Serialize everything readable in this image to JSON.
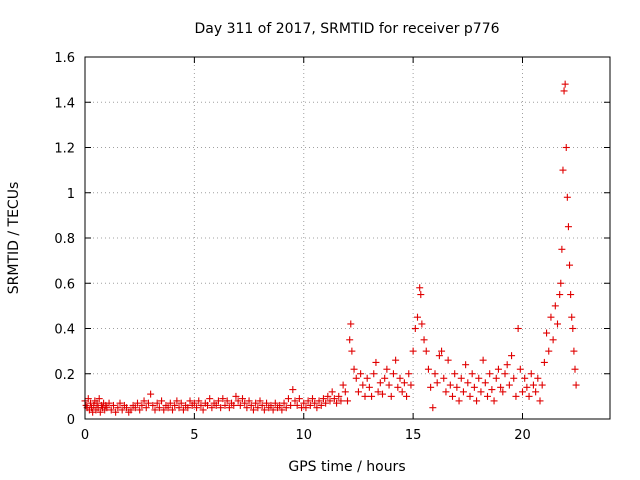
{
  "chart_data": {
    "type": "scatter",
    "title": "Day 311 of 2017, SRMTID for receiver p776",
    "xlabel": "GPS time / hours",
    "ylabel": "SRMTID / TECUs",
    "xlim": [
      0,
      24
    ],
    "ylim": [
      0,
      1.6
    ],
    "grid": true,
    "marker": "plus",
    "color": "#e00000",
    "x_ticks": [
      0,
      5,
      10,
      15,
      20
    ],
    "x_tick_labels": [
      "0",
      "5",
      "10",
      "15",
      "20"
    ],
    "y_ticks": [
      0,
      0.2,
      0.4,
      0.6,
      0.8,
      1.0,
      1.2,
      1.4,
      1.6
    ],
    "y_tick_labels": [
      "0",
      "0.2",
      "0.4",
      "0.6",
      "0.8",
      "1",
      "1.2",
      "1.4",
      "1.6"
    ],
    "series": [
      {
        "name": "SRMTID",
        "points": [
          [
            0.0,
            0.08
          ],
          [
            0.05,
            0.06
          ],
          [
            0.1,
            0.05
          ],
          [
            0.15,
            0.09
          ],
          [
            0.2,
            0.04
          ],
          [
            0.25,
            0.07
          ],
          [
            0.3,
            0.05
          ],
          [
            0.35,
            0.03
          ],
          [
            0.4,
            0.06
          ],
          [
            0.45,
            0.08
          ],
          [
            0.5,
            0.04
          ],
          [
            0.55,
            0.07
          ],
          [
            0.6,
            0.05
          ],
          [
            0.65,
            0.09
          ],
          [
            0.7,
            0.03
          ],
          [
            0.75,
            0.06
          ],
          [
            0.8,
            0.05
          ],
          [
            0.85,
            0.07
          ],
          [
            0.9,
            0.04
          ],
          [
            0.95,
            0.06
          ],
          [
            1.0,
            0.05
          ],
          [
            1.1,
            0.07
          ],
          [
            1.2,
            0.04
          ],
          [
            1.3,
            0.06
          ],
          [
            1.4,
            0.03
          ],
          [
            1.5,
            0.05
          ],
          [
            1.6,
            0.07
          ],
          [
            1.7,
            0.04
          ],
          [
            1.8,
            0.06
          ],
          [
            1.9,
            0.05
          ],
          [
            2.0,
            0.03
          ],
          [
            2.1,
            0.04
          ],
          [
            2.2,
            0.06
          ],
          [
            2.3,
            0.05
          ],
          [
            2.4,
            0.07
          ],
          [
            2.5,
            0.04
          ],
          [
            2.6,
            0.06
          ],
          [
            2.7,
            0.08
          ],
          [
            2.8,
            0.05
          ],
          [
            2.9,
            0.07
          ],
          [
            3.0,
            0.11
          ],
          [
            3.1,
            0.06
          ],
          [
            3.2,
            0.04
          ],
          [
            3.3,
            0.07
          ],
          [
            3.4,
            0.05
          ],
          [
            3.5,
            0.08
          ],
          [
            3.6,
            0.04
          ],
          [
            3.7,
            0.06
          ],
          [
            3.8,
            0.05
          ],
          [
            3.9,
            0.07
          ],
          [
            4.0,
            0.04
          ],
          [
            4.1,
            0.06
          ],
          [
            4.2,
            0.08
          ],
          [
            4.3,
            0.05
          ],
          [
            4.4,
            0.07
          ],
          [
            4.5,
            0.04
          ],
          [
            4.6,
            0.06
          ],
          [
            4.7,
            0.05
          ],
          [
            4.8,
            0.08
          ],
          [
            4.9,
            0.06
          ],
          [
            5.0,
            0.07
          ],
          [
            5.1,
            0.05
          ],
          [
            5.2,
            0.08
          ],
          [
            5.3,
            0.06
          ],
          [
            5.4,
            0.04
          ],
          [
            5.5,
            0.07
          ],
          [
            5.6,
            0.06
          ],
          [
            5.7,
            0.09
          ],
          [
            5.8,
            0.05
          ],
          [
            5.9,
            0.07
          ],
          [
            6.0,
            0.06
          ],
          [
            6.1,
            0.08
          ],
          [
            6.2,
            0.05
          ],
          [
            6.3,
            0.09
          ],
          [
            6.4,
            0.06
          ],
          [
            6.5,
            0.08
          ],
          [
            6.6,
            0.05
          ],
          [
            6.7,
            0.07
          ],
          [
            6.8,
            0.06
          ],
          [
            6.9,
            0.1
          ],
          [
            7.0,
            0.08
          ],
          [
            7.1,
            0.06
          ],
          [
            7.2,
            0.09
          ],
          [
            7.3,
            0.07
          ],
          [
            7.4,
            0.05
          ],
          [
            7.5,
            0.08
          ],
          [
            7.6,
            0.06
          ],
          [
            7.7,
            0.04
          ],
          [
            7.8,
            0.07
          ],
          [
            7.9,
            0.05
          ],
          [
            8.0,
            0.08
          ],
          [
            8.1,
            0.06
          ],
          [
            8.2,
            0.04
          ],
          [
            8.3,
            0.07
          ],
          [
            8.4,
            0.05
          ],
          [
            8.5,
            0.06
          ],
          [
            8.6,
            0.04
          ],
          [
            8.7,
            0.07
          ],
          [
            8.8,
            0.05
          ],
          [
            8.9,
            0.06
          ],
          [
            9.0,
            0.04
          ],
          [
            9.1,
            0.07
          ],
          [
            9.2,
            0.05
          ],
          [
            9.3,
            0.09
          ],
          [
            9.4,
            0.06
          ],
          [
            9.5,
            0.13
          ],
          [
            9.6,
            0.08
          ],
          [
            9.7,
            0.06
          ],
          [
            9.8,
            0.09
          ],
          [
            9.9,
            0.05
          ],
          [
            10.0,
            0.07
          ],
          [
            10.1,
            0.05
          ],
          [
            10.2,
            0.08
          ],
          [
            10.3,
            0.06
          ],
          [
            10.4,
            0.09
          ],
          [
            10.5,
            0.07
          ],
          [
            10.6,
            0.05
          ],
          [
            10.7,
            0.08
          ],
          [
            10.8,
            0.06
          ],
          [
            10.9,
            0.09
          ],
          [
            11.0,
            0.07
          ],
          [
            11.1,
            0.1
          ],
          [
            11.2,
            0.08
          ],
          [
            11.3,
            0.12
          ],
          [
            11.4,
            0.09
          ],
          [
            11.5,
            0.07
          ],
          [
            11.6,
            0.1
          ],
          [
            11.7,
            0.08
          ],
          [
            11.8,
            0.15
          ],
          [
            11.9,
            0.12
          ],
          [
            12.0,
            0.08
          ],
          [
            12.1,
            0.35
          ],
          [
            12.15,
            0.42
          ],
          [
            12.2,
            0.3
          ],
          [
            12.3,
            0.22
          ],
          [
            12.4,
            0.18
          ],
          [
            12.5,
            0.12
          ],
          [
            12.6,
            0.2
          ],
          [
            12.7,
            0.15
          ],
          [
            12.8,
            0.1
          ],
          [
            12.9,
            0.18
          ],
          [
            13.0,
            0.14
          ],
          [
            13.1,
            0.1
          ],
          [
            13.2,
            0.2
          ],
          [
            13.3,
            0.25
          ],
          [
            13.4,
            0.12
          ],
          [
            13.5,
            0.16
          ],
          [
            13.6,
            0.11
          ],
          [
            13.7,
            0.18
          ],
          [
            13.8,
            0.22
          ],
          [
            13.9,
            0.15
          ],
          [
            14.0,
            0.1
          ],
          [
            14.1,
            0.2
          ],
          [
            14.2,
            0.26
          ],
          [
            14.3,
            0.14
          ],
          [
            14.4,
            0.18
          ],
          [
            14.5,
            0.12
          ],
          [
            14.6,
            0.16
          ],
          [
            14.7,
            0.1
          ],
          [
            14.8,
            0.2
          ],
          [
            14.9,
            0.15
          ],
          [
            15.0,
            0.3
          ],
          [
            15.1,
            0.4
          ],
          [
            15.2,
            0.45
          ],
          [
            15.3,
            0.58
          ],
          [
            15.35,
            0.55
          ],
          [
            15.4,
            0.42
          ],
          [
            15.5,
            0.35
          ],
          [
            15.6,
            0.3
          ],
          [
            15.7,
            0.22
          ],
          [
            15.8,
            0.14
          ],
          [
            15.9,
            0.05
          ],
          [
            16.0,
            0.2
          ],
          [
            16.1,
            0.16
          ],
          [
            16.2,
            0.28
          ],
          [
            16.3,
            0.3
          ],
          [
            16.4,
            0.18
          ],
          [
            16.5,
            0.12
          ],
          [
            16.6,
            0.26
          ],
          [
            16.7,
            0.15
          ],
          [
            16.8,
            0.1
          ],
          [
            16.9,
            0.2
          ],
          [
            17.0,
            0.14
          ],
          [
            17.1,
            0.08
          ],
          [
            17.2,
            0.18
          ],
          [
            17.3,
            0.12
          ],
          [
            17.4,
            0.24
          ],
          [
            17.5,
            0.16
          ],
          [
            17.6,
            0.1
          ],
          [
            17.7,
            0.2
          ],
          [
            17.8,
            0.14
          ],
          [
            17.9,
            0.08
          ],
          [
            18.0,
            0.18
          ],
          [
            18.1,
            0.12
          ],
          [
            18.2,
            0.26
          ],
          [
            18.3,
            0.16
          ],
          [
            18.4,
            0.1
          ],
          [
            18.5,
            0.2
          ],
          [
            18.6,
            0.13
          ],
          [
            18.7,
            0.08
          ],
          [
            18.8,
            0.18
          ],
          [
            18.9,
            0.22
          ],
          [
            19.0,
            0.14
          ],
          [
            19.1,
            0.12
          ],
          [
            19.2,
            0.2
          ],
          [
            19.3,
            0.24
          ],
          [
            19.4,
            0.15
          ],
          [
            19.5,
            0.28
          ],
          [
            19.6,
            0.18
          ],
          [
            19.7,
            0.1
          ],
          [
            19.8,
            0.4
          ],
          [
            19.9,
            0.22
          ],
          [
            20.0,
            0.12
          ],
          [
            20.1,
            0.18
          ],
          [
            20.2,
            0.14
          ],
          [
            20.3,
            0.1
          ],
          [
            20.4,
            0.2
          ],
          [
            20.5,
            0.15
          ],
          [
            20.6,
            0.12
          ],
          [
            20.7,
            0.18
          ],
          [
            20.8,
            0.08
          ],
          [
            20.9,
            0.15
          ],
          [
            21.0,
            0.25
          ],
          [
            21.1,
            0.38
          ],
          [
            21.2,
            0.3
          ],
          [
            21.3,
            0.45
          ],
          [
            21.4,
            0.35
          ],
          [
            21.5,
            0.5
          ],
          [
            21.6,
            0.42
          ],
          [
            21.7,
            0.55
          ],
          [
            21.75,
            0.6
          ],
          [
            21.8,
            0.75
          ],
          [
            21.85,
            1.1
          ],
          [
            21.9,
            1.45
          ],
          [
            21.95,
            1.48
          ],
          [
            22.0,
            1.2
          ],
          [
            22.05,
            0.98
          ],
          [
            22.1,
            0.85
          ],
          [
            22.15,
            0.68
          ],
          [
            22.2,
            0.55
          ],
          [
            22.25,
            0.45
          ],
          [
            22.3,
            0.4
          ],
          [
            22.35,
            0.3
          ],
          [
            22.4,
            0.22
          ],
          [
            22.45,
            0.15
          ]
        ]
      }
    ]
  }
}
